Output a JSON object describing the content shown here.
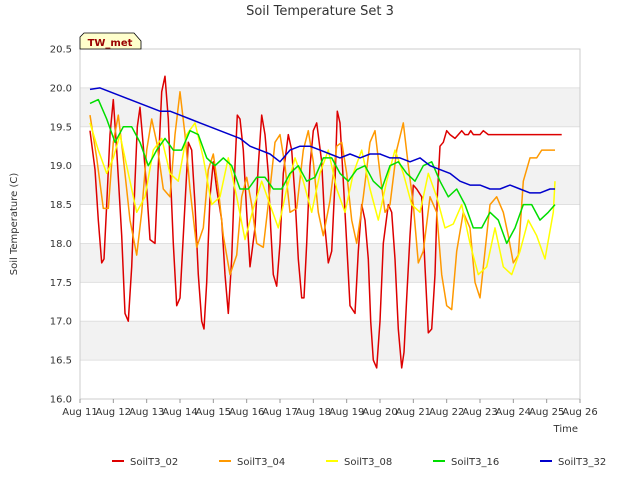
{
  "chart_data": {
    "type": "line",
    "title": "Soil Temperature Set 3",
    "xlabel": "Time",
    "ylabel": "Soil Temperature (C)",
    "ylim": [
      16.0,
      20.5
    ],
    "xlim": [
      "2024-08-11",
      "2024-08-26"
    ],
    "yticks": [
      16.0,
      16.5,
      17.0,
      17.5,
      18.0,
      18.5,
      19.0,
      19.5,
      20.0,
      20.5
    ],
    "xticks": [
      "Aug 11",
      "Aug 12",
      "Aug 13",
      "Aug 14",
      "Aug 15",
      "Aug 16",
      "Aug 17",
      "Aug 18",
      "Aug 19",
      "Aug 20",
      "Aug 21",
      "Aug 22",
      "Aug 23",
      "Aug 24",
      "Aug 25",
      "Aug 26"
    ],
    "grid": "alternating horizontal bands",
    "legend_position": "bottom",
    "station_badge": "TW_met",
    "series": [
      {
        "name": "SoilT3_02",
        "color": "#dd0000",
        "x": [
          0.3,
          0.45,
          0.55,
          0.65,
          0.72,
          0.8,
          0.9,
          1.0,
          1.1,
          1.25,
          1.35,
          1.45,
          1.55,
          1.65,
          1.72,
          1.8,
          1.9,
          2.0,
          2.1,
          2.25,
          2.35,
          2.45,
          2.55,
          2.65,
          2.72,
          2.8,
          2.9,
          3.0,
          3.1,
          3.25,
          3.35,
          3.45,
          3.55,
          3.65,
          3.72,
          3.8,
          3.9,
          4.0,
          4.1,
          4.25,
          4.35,
          4.45,
          4.55,
          4.65,
          4.72,
          4.8,
          4.9,
          5.0,
          5.1,
          5.25,
          5.35,
          5.45,
          5.55,
          5.65,
          5.72,
          5.8,
          5.9,
          6.0,
          6.1,
          6.25,
          6.35,
          6.45,
          6.55,
          6.65,
          6.72,
          6.8,
          6.9,
          7.0,
          7.1,
          7.25,
          7.35,
          7.45,
          7.55,
          7.65,
          7.72,
          7.8,
          7.9,
          8.0,
          8.1,
          8.25,
          8.35,
          8.45,
          8.55,
          8.65,
          8.72,
          8.8,
          8.9,
          9.0,
          9.1,
          9.25,
          9.35,
          9.45,
          9.55,
          9.65,
          9.72,
          9.8,
          9.9,
          10.0,
          10.1,
          10.25,
          10.35,
          10.45,
          10.55,
          10.65,
          10.72,
          10.8,
          10.9,
          11.0,
          11.1,
          11.25,
          11.35,
          11.45,
          11.55,
          11.65,
          11.72,
          11.8,
          11.9,
          12.0,
          12.1,
          12.25,
          12.35,
          12.45,
          12.55,
          12.65,
          12.72,
          12.8,
          12.9,
          13.0,
          13.1,
          13.25,
          13.35,
          13.45,
          13.55,
          13.65,
          13.72,
          13.8,
          13.9,
          14.0,
          14.1,
          14.25,
          14.35,
          14.45
        ],
        "values": [
          19.45,
          18.95,
          18.3,
          17.75,
          17.8,
          18.5,
          19.4,
          19.85,
          19.2,
          18.1,
          17.1,
          17.0,
          17.7,
          18.8,
          19.5,
          19.75,
          19.25,
          18.7,
          18.05,
          18.0,
          19.0,
          19.95,
          20.15,
          19.6,
          18.8,
          18.0,
          17.2,
          17.3,
          18.1,
          19.3,
          19.2,
          18.5,
          17.6,
          17.0,
          16.9,
          17.5,
          18.6,
          19.05,
          18.7,
          18.3,
          17.6,
          17.1,
          17.8,
          19.0,
          19.65,
          19.6,
          19.2,
          18.4,
          17.7,
          18.2,
          19.0,
          19.65,
          19.4,
          18.9,
          18.2,
          17.6,
          17.45,
          18.0,
          18.9,
          19.4,
          19.2,
          18.6,
          17.8,
          17.3,
          17.3,
          18.0,
          19.0,
          19.45,
          19.55,
          19.05,
          18.2,
          17.75,
          17.9,
          18.8,
          19.7,
          19.55,
          18.8,
          18.0,
          17.2,
          17.1,
          17.9,
          18.5,
          18.3,
          17.8,
          17.0,
          16.5,
          16.4,
          17.0,
          18.0,
          18.5,
          18.4,
          17.8,
          16.9,
          16.4,
          16.6,
          17.3,
          18.1,
          18.75,
          18.7,
          18.6,
          17.7,
          16.85,
          16.9,
          17.6,
          18.6,
          19.25,
          19.3,
          19.45,
          19.4,
          19.35,
          19.4,
          19.45,
          19.4,
          19.4,
          19.45,
          19.4,
          19.4,
          19.4,
          19.45,
          19.4,
          19.4,
          19.4,
          19.4,
          19.4,
          19.4,
          19.4,
          19.4,
          19.4,
          19.4,
          19.4,
          19.4,
          19.4,
          19.4,
          19.4,
          19.4,
          19.4,
          19.4,
          19.4,
          19.4,
          19.4,
          19.4,
          19.4
        ]
      },
      {
        "name": "SoilT3_04",
        "color": "#ff9900",
        "x": [
          0.3,
          0.5,
          0.7,
          0.85,
          1.0,
          1.15,
          1.3,
          1.5,
          1.7,
          1.85,
          2.0,
          2.15,
          2.3,
          2.5,
          2.7,
          2.85,
          3.0,
          3.15,
          3.3,
          3.5,
          3.7,
          3.85,
          4.0,
          4.15,
          4.3,
          4.5,
          4.7,
          4.85,
          5.0,
          5.15,
          5.3,
          5.5,
          5.7,
          5.85,
          6.0,
          6.15,
          6.3,
          6.5,
          6.7,
          6.85,
          7.0,
          7.15,
          7.3,
          7.5,
          7.7,
          7.85,
          8.0,
          8.15,
          8.3,
          8.5,
          8.7,
          8.85,
          9.0,
          9.15,
          9.3,
          9.5,
          9.7,
          9.85,
          10.0,
          10.15,
          10.3,
          10.5,
          10.7,
          10.85,
          11.0,
          11.15,
          11.3,
          11.5,
          11.7,
          11.85,
          12.0,
          12.15,
          12.3,
          12.5,
          12.7,
          12.85,
          13.0,
          13.15,
          13.3,
          13.5,
          13.7,
          13.85,
          14.0,
          14.15,
          14.25
        ],
        "values": [
          19.65,
          19.1,
          18.45,
          18.45,
          19.3,
          19.65,
          19.1,
          18.3,
          17.85,
          18.4,
          19.2,
          19.6,
          19.3,
          18.7,
          18.6,
          19.4,
          19.95,
          19.4,
          18.7,
          17.95,
          18.2,
          18.95,
          19.15,
          18.7,
          18.1,
          17.6,
          17.85,
          18.6,
          18.85,
          18.5,
          18.0,
          17.95,
          18.7,
          19.3,
          19.4,
          19.0,
          18.4,
          18.45,
          19.2,
          19.45,
          19.05,
          18.4,
          18.1,
          18.55,
          19.25,
          19.3,
          18.9,
          18.3,
          18.0,
          18.6,
          19.3,
          19.45,
          18.9,
          18.4,
          18.5,
          19.2,
          19.55,
          19.0,
          18.5,
          17.75,
          17.9,
          18.6,
          18.4,
          17.6,
          17.2,
          17.15,
          17.9,
          18.4,
          18.2,
          17.5,
          17.3,
          17.9,
          18.5,
          18.6,
          18.4,
          18.1,
          17.75,
          17.85,
          18.8,
          19.1,
          19.1,
          19.2,
          19.2,
          19.2,
          19.2
        ]
      },
      {
        "name": "SoilT3_08",
        "color": "#ffff00",
        "x": [
          0.3,
          0.55,
          0.8,
          1.0,
          1.2,
          1.45,
          1.7,
          1.95,
          2.2,
          2.45,
          2.7,
          2.95,
          3.2,
          3.45,
          3.7,
          3.95,
          4.2,
          4.45,
          4.7,
          4.95,
          5.2,
          5.45,
          5.7,
          5.95,
          6.2,
          6.45,
          6.7,
          6.95,
          7.2,
          7.45,
          7.7,
          7.95,
          8.2,
          8.45,
          8.7,
          8.95,
          9.2,
          9.45,
          9.7,
          9.95,
          10.2,
          10.45,
          10.7,
          10.95,
          11.2,
          11.45,
          11.7,
          11.95,
          12.2,
          12.45,
          12.7,
          12.95,
          13.2,
          13.45,
          13.7,
          13.95,
          14.2,
          14.25
        ],
        "values": [
          19.55,
          19.2,
          18.9,
          19.1,
          19.4,
          18.9,
          18.4,
          18.6,
          19.2,
          19.35,
          18.9,
          18.8,
          19.4,
          19.55,
          19.1,
          18.5,
          18.6,
          19.1,
          18.6,
          18.05,
          18.45,
          18.8,
          18.5,
          18.2,
          18.7,
          19.1,
          18.8,
          18.4,
          18.9,
          19.2,
          18.7,
          18.4,
          18.9,
          19.2,
          18.7,
          18.3,
          18.8,
          19.2,
          18.9,
          18.5,
          18.4,
          18.9,
          18.6,
          18.2,
          18.25,
          18.5,
          18.0,
          17.6,
          17.7,
          18.2,
          17.7,
          17.6,
          17.9,
          18.3,
          18.1,
          17.8,
          18.4,
          18.8
        ]
      },
      {
        "name": "SoilT3_16",
        "color": "#00dd00",
        "x": [
          0.3,
          0.55,
          0.8,
          1.05,
          1.3,
          1.55,
          1.8,
          2.05,
          2.3,
          2.55,
          2.8,
          3.05,
          3.3,
          3.55,
          3.8,
          4.05,
          4.3,
          4.55,
          4.8,
          5.05,
          5.3,
          5.55,
          5.8,
          6.05,
          6.3,
          6.55,
          6.8,
          7.05,
          7.3,
          7.55,
          7.8,
          8.05,
          8.3,
          8.55,
          8.8,
          9.05,
          9.3,
          9.55,
          9.8,
          10.05,
          10.3,
          10.55,
          10.8,
          11.05,
          11.3,
          11.55,
          11.8,
          12.05,
          12.3,
          12.55,
          12.8,
          13.05,
          13.3,
          13.55,
          13.8,
          14.05,
          14.25
        ],
        "values": [
          19.8,
          19.85,
          19.6,
          19.3,
          19.5,
          19.5,
          19.3,
          19.0,
          19.2,
          19.35,
          19.2,
          19.2,
          19.45,
          19.4,
          19.1,
          19.0,
          19.1,
          19.0,
          18.7,
          18.7,
          18.85,
          18.85,
          18.7,
          18.7,
          18.9,
          19.0,
          18.8,
          18.85,
          19.1,
          19.1,
          18.9,
          18.8,
          18.95,
          19.0,
          18.8,
          18.7,
          19.0,
          19.05,
          18.9,
          18.8,
          19.0,
          19.05,
          18.8,
          18.6,
          18.7,
          18.5,
          18.2,
          18.2,
          18.4,
          18.3,
          18.0,
          18.2,
          18.5,
          18.5,
          18.3,
          18.4,
          18.5
        ]
      },
      {
        "name": "SoilT3_32",
        "color": "#0000cc",
        "x": [
          0.3,
          0.6,
          0.9,
          1.2,
          1.5,
          1.8,
          2.1,
          2.4,
          2.7,
          3.0,
          3.3,
          3.6,
          3.9,
          4.2,
          4.5,
          4.8,
          5.1,
          5.4,
          5.7,
          6.0,
          6.3,
          6.6,
          6.9,
          7.2,
          7.5,
          7.8,
          8.1,
          8.4,
          8.7,
          9.0,
          9.3,
          9.6,
          9.9,
          10.2,
          10.5,
          10.8,
          11.1,
          11.4,
          11.7,
          12.0,
          12.3,
          12.6,
          12.9,
          13.2,
          13.5,
          13.8,
          14.1,
          14.25
        ],
        "values": [
          19.98,
          20.0,
          19.95,
          19.9,
          19.85,
          19.8,
          19.75,
          19.7,
          19.7,
          19.65,
          19.6,
          19.55,
          19.5,
          19.45,
          19.4,
          19.35,
          19.25,
          19.2,
          19.15,
          19.05,
          19.2,
          19.25,
          19.25,
          19.2,
          19.15,
          19.1,
          19.15,
          19.1,
          19.15,
          19.15,
          19.1,
          19.1,
          19.05,
          19.1,
          19.0,
          18.95,
          18.9,
          18.8,
          18.75,
          18.75,
          18.7,
          18.7,
          18.75,
          18.7,
          18.65,
          18.65,
          18.7,
          18.7
        ]
      }
    ]
  }
}
